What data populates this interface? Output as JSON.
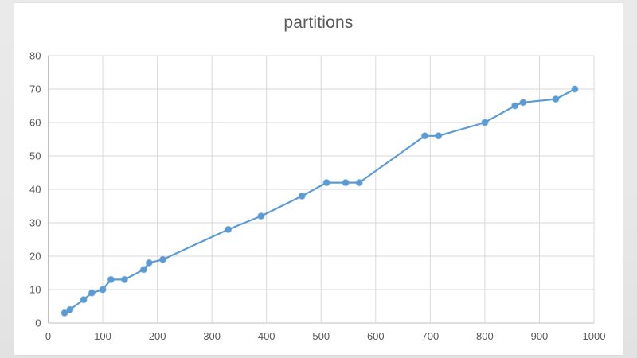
{
  "page": {
    "background_color": "#e7e7e7",
    "card_color": "#ffffff"
  },
  "chart_data": {
    "type": "line",
    "title": "partitions",
    "title_color": "#595959",
    "series": [
      {
        "name": "partitions",
        "color": "#5b9bd5",
        "points": [
          [
            30,
            3
          ],
          [
            40,
            4
          ],
          [
            65,
            7
          ],
          [
            80,
            9
          ],
          [
            100,
            10
          ],
          [
            115,
            13
          ],
          [
            140,
            13
          ],
          [
            175,
            16
          ],
          [
            185,
            18
          ],
          [
            210,
            19
          ],
          [
            330,
            28
          ],
          [
            390,
            32
          ],
          [
            465,
            38
          ],
          [
            510,
            42
          ],
          [
            545,
            42
          ],
          [
            570,
            42
          ],
          [
            690,
            56
          ],
          [
            715,
            56
          ],
          [
            800,
            60
          ],
          [
            855,
            65
          ],
          [
            870,
            66
          ],
          [
            930,
            67
          ],
          [
            965,
            70
          ]
        ]
      }
    ],
    "xlim": [
      0,
      1000
    ],
    "ylim": [
      0,
      80
    ],
    "xticks": [
      0,
      100,
      200,
      300,
      400,
      500,
      600,
      700,
      800,
      900,
      1000
    ],
    "yticks": [
      0,
      10,
      20,
      30,
      40,
      50,
      60,
      70,
      80
    ],
    "grid": true,
    "legend": false,
    "marker": "circle",
    "marker_radius": 4,
    "line_width": 2.2,
    "gridline_color": "#d9d9d9",
    "axis_line_color": "#bfbfbf",
    "tick_label_color": "#595959"
  }
}
